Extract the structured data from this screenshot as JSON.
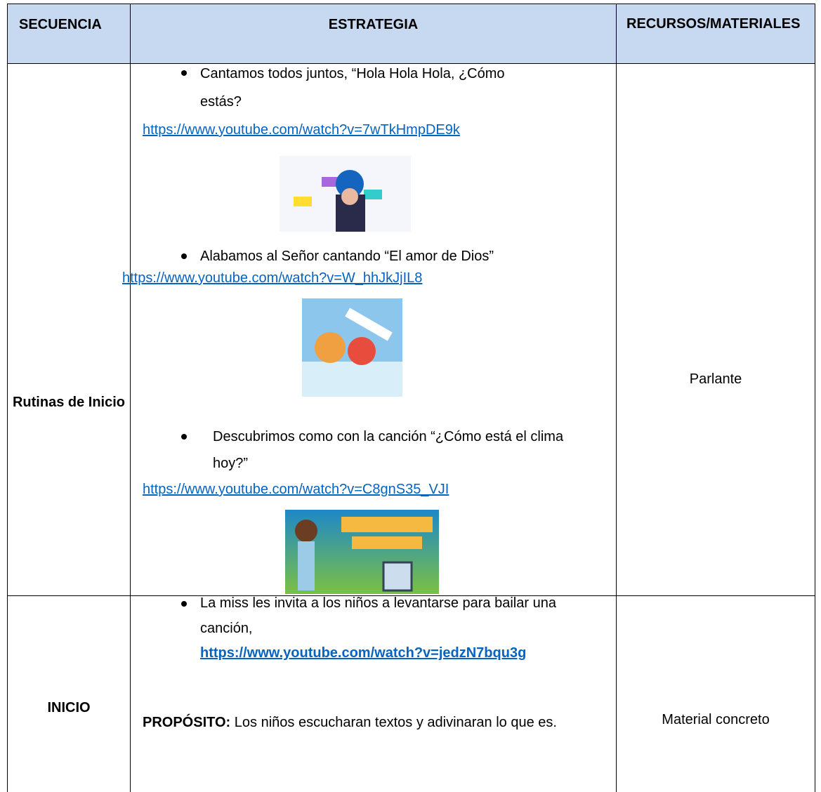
{
  "table": {
    "headers": [
      "SECUENCIA",
      "ESTRATEGIA",
      "RECURSOS/MATERIALES"
    ],
    "rows": [
      {
        "sequence": "Rutinas de Inicio",
        "strategy": [
          {
            "text": "Cantamos todos juntos, “Hola Hola Hola, ¿Cómo estás?",
            "link": "https://www.youtube.com/watch?v=7wTkHmpDE9k"
          },
          {
            "text": "Alabamos al Señor cantando “El amor de Dios”",
            "link": "https://www.youtube.com/watch?v=W_hhJkJjIL8"
          },
          {
            "text": "Descubrimos como con la canción “¿Cómo está el clima hoy?”",
            "link": "https://www.youtube.com/watch?v=C8gnS35_VJI"
          }
        ],
        "resources": "Parlante"
      },
      {
        "sequence": "INICIO",
        "strategy": [
          {
            "text": "La miss les invita a los niños a levantarse para bailar una canción,",
            "link": "https://www.youtube.com/watch?v=jedzN7bqu3g"
          }
        ],
        "purpose_label": "PROPÓSITO:",
        "purpose": "Los niños escucharan textos y adivinaran lo que es.",
        "resources": "Material concreto"
      }
    ]
  }
}
